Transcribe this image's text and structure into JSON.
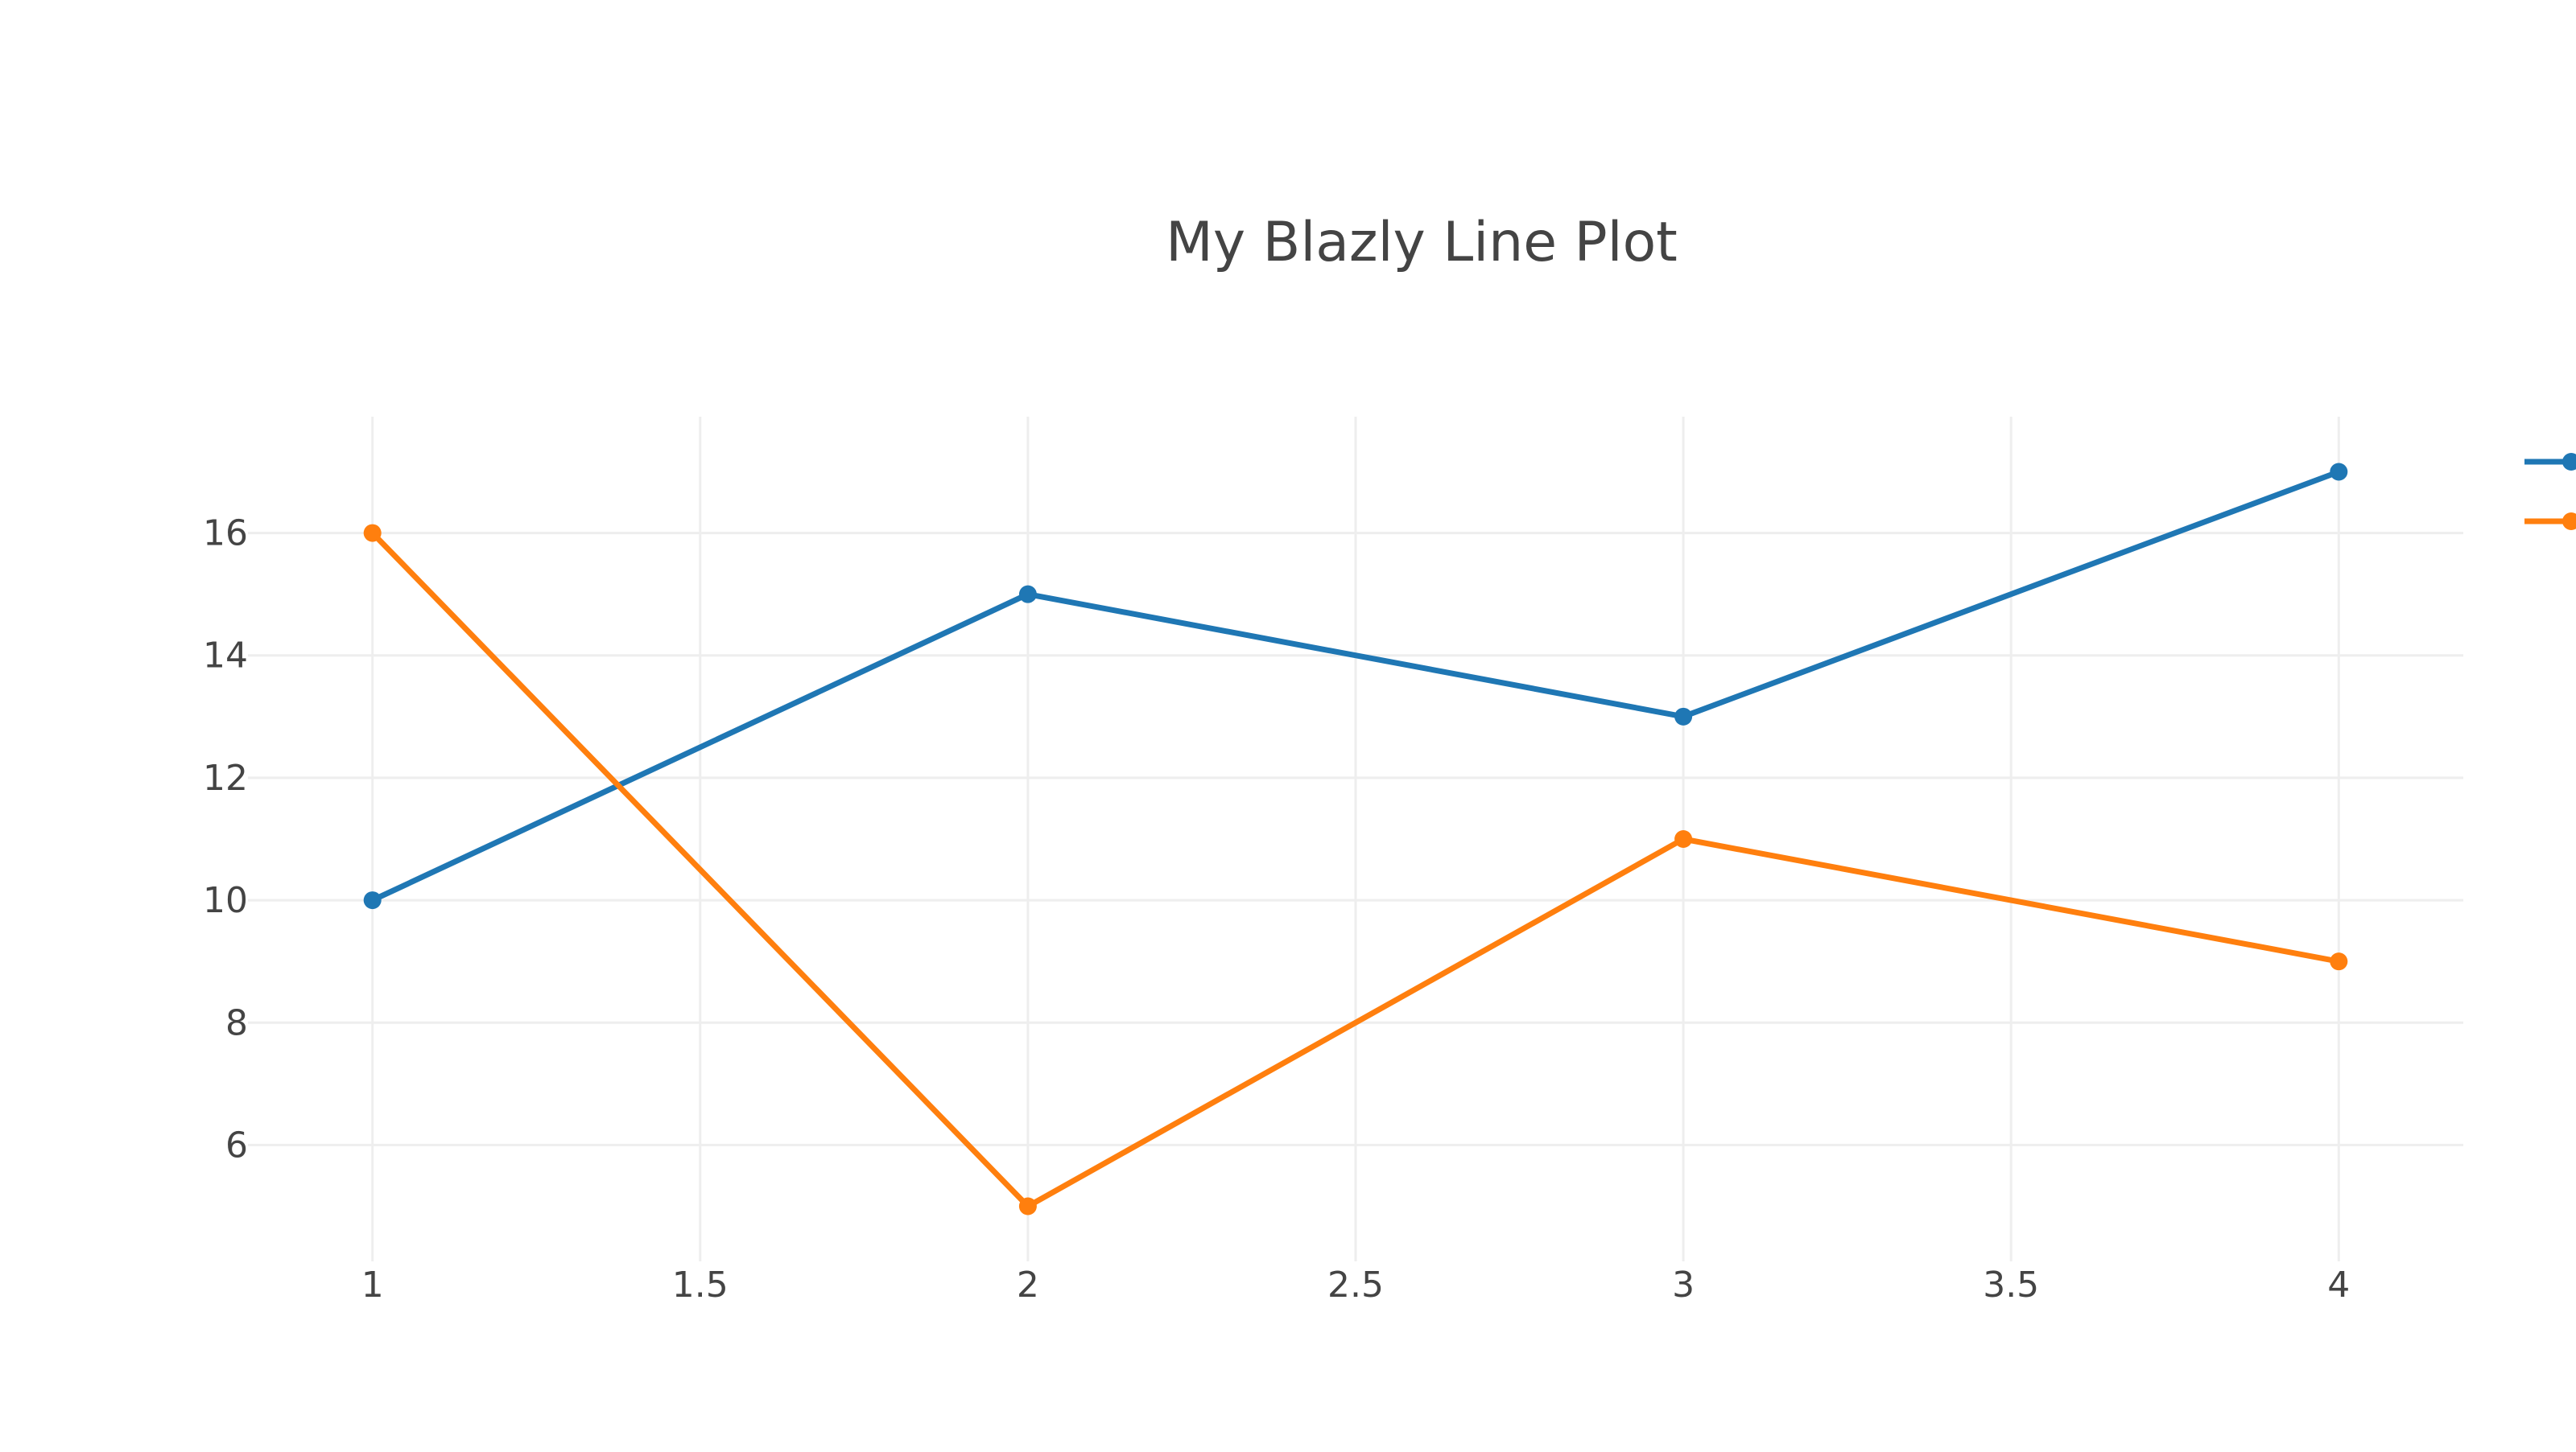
{
  "chart_data": {
    "type": "line",
    "title": "My Blazly Line Plot",
    "xlabel": "",
    "ylabel": "",
    "xlim": [
      0.81,
      4.19
    ],
    "ylim": [
      4.1,
      17.9
    ],
    "xticks": [
      1,
      1.5,
      2,
      2.5,
      3,
      3.5,
      4
    ],
    "xtick_labels": [
      "1",
      "1.5",
      "2",
      "2.5",
      "3",
      "3.5",
      "4"
    ],
    "yticks": [
      6,
      8,
      10,
      12,
      14,
      16
    ],
    "ytick_labels": [
      "6",
      "8",
      "10",
      "12",
      "14",
      "16"
    ],
    "grid": true,
    "legend_position": "top-right",
    "x": [
      1,
      2,
      3,
      4
    ],
    "series": [
      {
        "values": [
          10,
          15,
          13,
          17
        ],
        "color": "#1f77b4"
      },
      {
        "values": [
          16,
          5,
          11,
          9
        ],
        "color": "#ff7f0e"
      }
    ]
  },
  "colors": {
    "background": "#ffffff",
    "grid": "#eeeeee",
    "text": "#444444"
  }
}
